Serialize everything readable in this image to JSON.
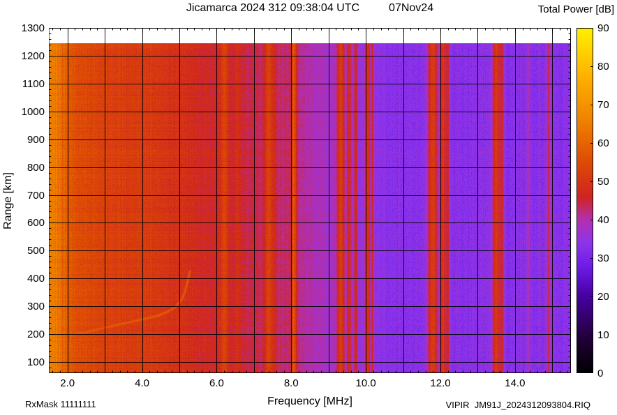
{
  "header": {
    "title": "Jicamarca 2024 312 09:38:04 UTC",
    "date": "07Nov24",
    "colorbar_title": "Total Power [dB]"
  },
  "footer": {
    "rx_mask": "RxMask 11111111",
    "xlabel": "Frequency [MHz]",
    "file": "VIPIR  JM91J_2024312093804.RIQ"
  },
  "chart_data": {
    "type": "heatmap",
    "title": "Jicamarca 2024 312 09:38:04 UTC 07Nov24",
    "xlabel": "Frequency [MHz]",
    "ylabel": "Range [km]",
    "colorbar_label": "Total Power [dB]",
    "x_range_mhz": [
      1.5,
      15.5
    ],
    "y_range_km": [
      60,
      1300
    ],
    "data_top_km": 1245,
    "grid": true,
    "x_tick_values": [
      2,
      4,
      6,
      8,
      10,
      12,
      14
    ],
    "x_tick_labels": [
      "2.0",
      "4.0",
      "6.0",
      "8.0",
      "10.0",
      "12.0",
      "14.0"
    ],
    "x_grid_step_mhz": 1,
    "x_minor_tick_mhz": 0.2,
    "y_tick_values": [
      100,
      200,
      300,
      400,
      500,
      600,
      700,
      800,
      900,
      1000,
      1100,
      1200,
      1300
    ],
    "y_tick_labels": [
      "100",
      "200",
      "300",
      "400",
      "500",
      "600",
      "700",
      "800",
      "900",
      "1000",
      "1100",
      "1200",
      "1300"
    ],
    "y_grid_step_km": 100,
    "y_minor_tick_km": 20,
    "colorbar_range_db": [
      0,
      90
    ],
    "colorbar_tick_values": [
      0,
      10,
      20,
      30,
      40,
      50,
      60,
      70,
      80,
      90
    ],
    "palette_stops_db_hex": [
      [
        0,
        "#000000"
      ],
      [
        10,
        "#250040"
      ],
      [
        20,
        "#4600a0"
      ],
      [
        28,
        "#6e1ce8"
      ],
      [
        34,
        "#8d35ea"
      ],
      [
        40,
        "#b32fae"
      ],
      [
        46,
        "#cf2420"
      ],
      [
        55,
        "#dd4a05"
      ],
      [
        65,
        "#ee7d00"
      ],
      [
        78,
        "#ffb400"
      ],
      [
        90,
        "#fff000"
      ]
    ],
    "background_power_db_vs_mhz": [
      [
        1.5,
        66
      ],
      [
        1.7,
        64
      ],
      [
        1.9,
        59
      ],
      [
        2.2,
        56
      ],
      [
        2.6,
        54
      ],
      [
        3.0,
        53
      ],
      [
        3.6,
        52
      ],
      [
        4.2,
        51
      ],
      [
        5.0,
        49
      ],
      [
        5.6,
        47
      ],
      [
        6.0,
        46
      ],
      [
        6.6,
        45
      ],
      [
        7.0,
        44
      ],
      [
        7.6,
        43
      ],
      [
        8.0,
        42
      ],
      [
        8.4,
        40
      ],
      [
        9.0,
        38
      ],
      [
        9.4,
        37
      ],
      [
        9.8,
        35
      ],
      [
        10.2,
        34
      ],
      [
        10.8,
        33
      ],
      [
        12.0,
        33
      ],
      [
        13.0,
        33
      ],
      [
        14.0,
        33
      ],
      [
        15.0,
        33
      ],
      [
        15.5,
        34
      ]
    ],
    "noise_db": 2.2,
    "interference_stripes": [
      {
        "mhz": 6.2,
        "width_mhz": 0.09,
        "power_db": 53
      },
      {
        "mhz": 6.55,
        "width_mhz": 0.05,
        "power_db": 49
      },
      {
        "mhz": 7.4,
        "width_mhz": 0.08,
        "power_db": 53
      },
      {
        "mhz": 7.55,
        "width_mhz": 0.04,
        "power_db": 48
      },
      {
        "mhz": 8.07,
        "width_mhz": 0.05,
        "power_db": 57
      },
      {
        "mhz": 9.33,
        "width_mhz": 0.07,
        "power_db": 52
      },
      {
        "mhz": 9.55,
        "width_mhz": 0.04,
        "power_db": 48
      },
      {
        "mhz": 9.73,
        "width_mhz": 0.04,
        "power_db": 47
      },
      {
        "mhz": 10.05,
        "width_mhz": 0.05,
        "power_db": 49
      },
      {
        "mhz": 10.18,
        "width_mhz": 0.03,
        "power_db": 45
      },
      {
        "mhz": 11.8,
        "width_mhz": 0.1,
        "power_db": 52
      },
      {
        "mhz": 12.07,
        "width_mhz": 0.06,
        "power_db": 51
      },
      {
        "mhz": 12.2,
        "width_mhz": 0.04,
        "power_db": 47
      },
      {
        "mhz": 13.5,
        "width_mhz": 0.08,
        "power_db": 51
      },
      {
        "mhz": 13.65,
        "width_mhz": 0.04,
        "power_db": 47
      },
      {
        "mhz": 14.35,
        "width_mhz": 0.03,
        "power_db": 40
      },
      {
        "mhz": 14.9,
        "width_mhz": 0.04,
        "power_db": 43
      }
    ],
    "echo_trace": {
      "power_db": 59,
      "points_mhz_km": [
        [
          2.1,
          198
        ],
        [
          2.5,
          208
        ],
        [
          2.9,
          220
        ],
        [
          3.3,
          232
        ],
        [
          3.7,
          244
        ],
        [
          4.1,
          256
        ],
        [
          4.45,
          268
        ],
        [
          4.7,
          282
        ],
        [
          4.9,
          298
        ],
        [
          5.05,
          322
        ],
        [
          5.15,
          352
        ],
        [
          5.22,
          388
        ],
        [
          5.28,
          425
        ]
      ]
    }
  }
}
